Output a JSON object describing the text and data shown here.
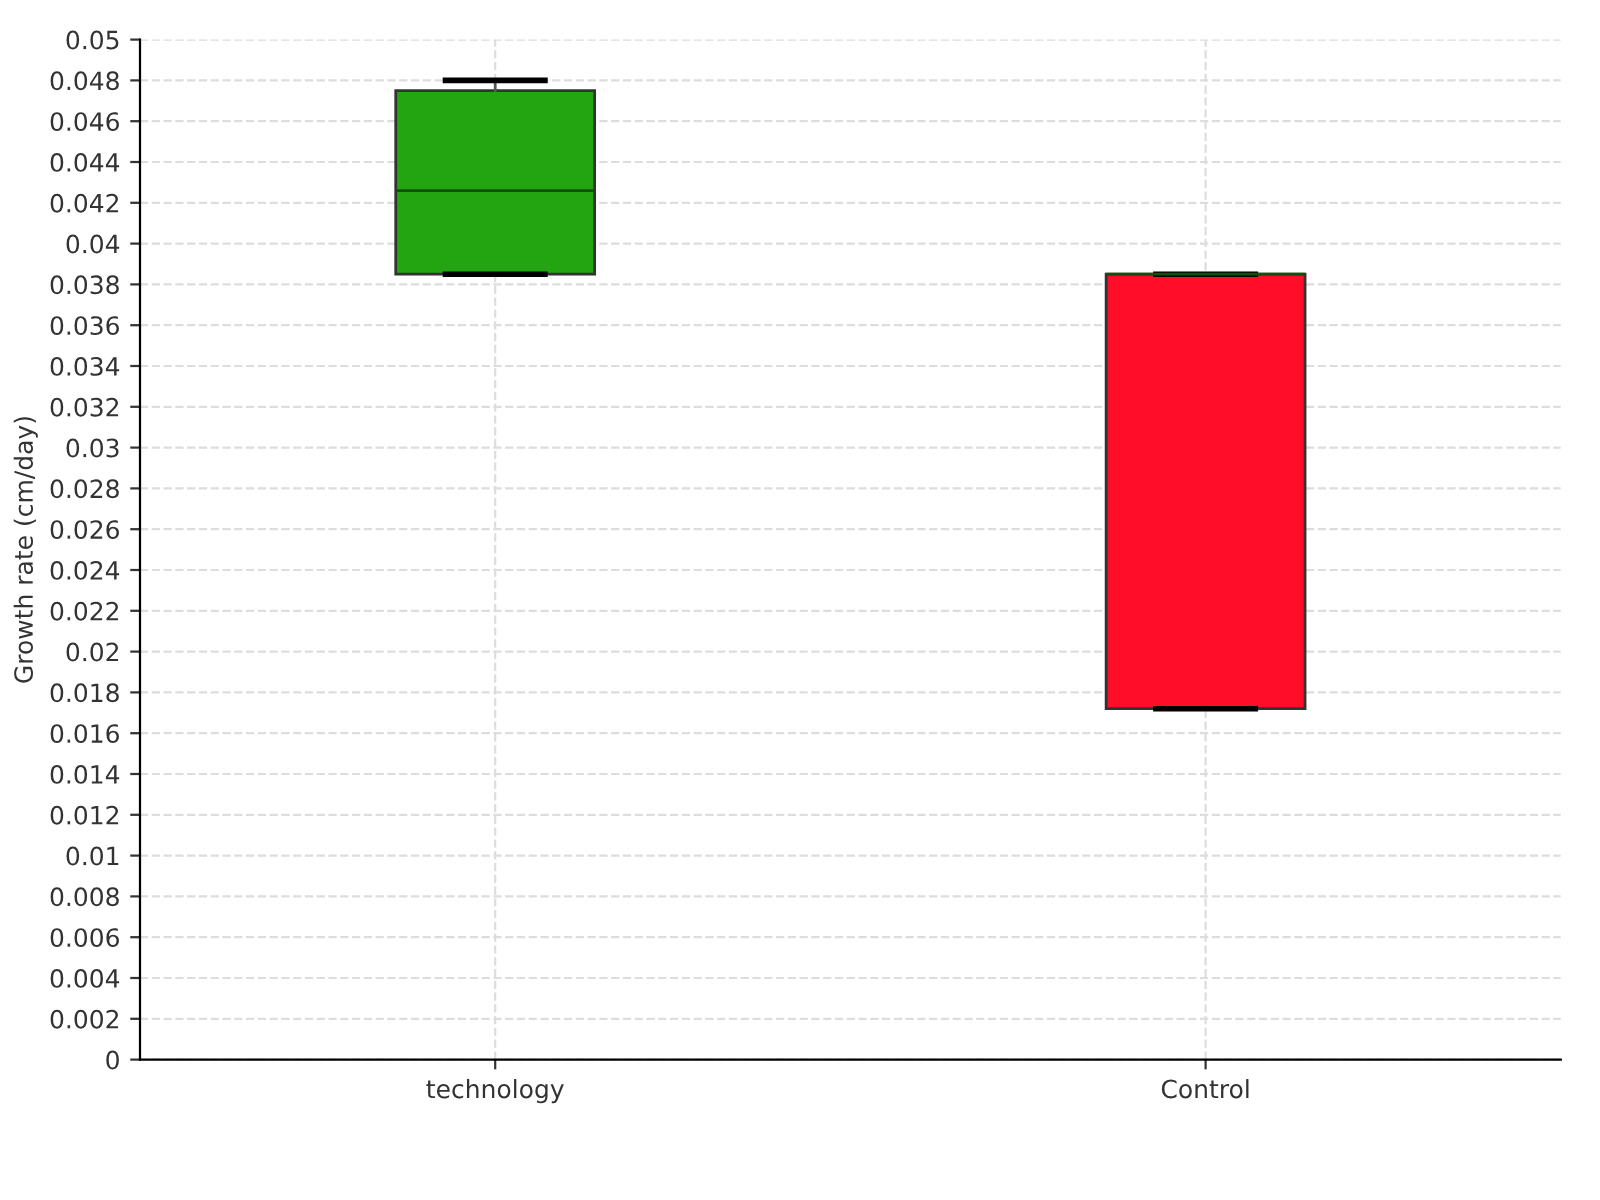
{
  "chart_data": {
    "type": "box",
    "ylabel": "Growth rate (cm/day)",
    "categories": [
      "technology",
      "Control"
    ],
    "boxes": [
      {
        "low": 0.0385,
        "q1": 0.0385,
        "median": 0.0426,
        "q3": 0.0475,
        "high": 0.048
      },
      {
        "low": 0.0172,
        "q1": 0.0172,
        "median": 0.0385,
        "q3": 0.0385,
        "high": 0.0385
      }
    ],
    "colors": [
      "#22a511",
      "#ff0d29"
    ],
    "ylim": [
      0,
      0.05
    ],
    "yticks": [
      0,
      0.002,
      0.004,
      0.006,
      0.008,
      0.01,
      0.012,
      0.014,
      0.016,
      0.018,
      0.02,
      0.022,
      0.024,
      0.026,
      0.028,
      0.03,
      0.032,
      0.034,
      0.036,
      0.038,
      0.04,
      0.042,
      0.044,
      0.046,
      0.048,
      0.05
    ],
    "grid": true
  }
}
